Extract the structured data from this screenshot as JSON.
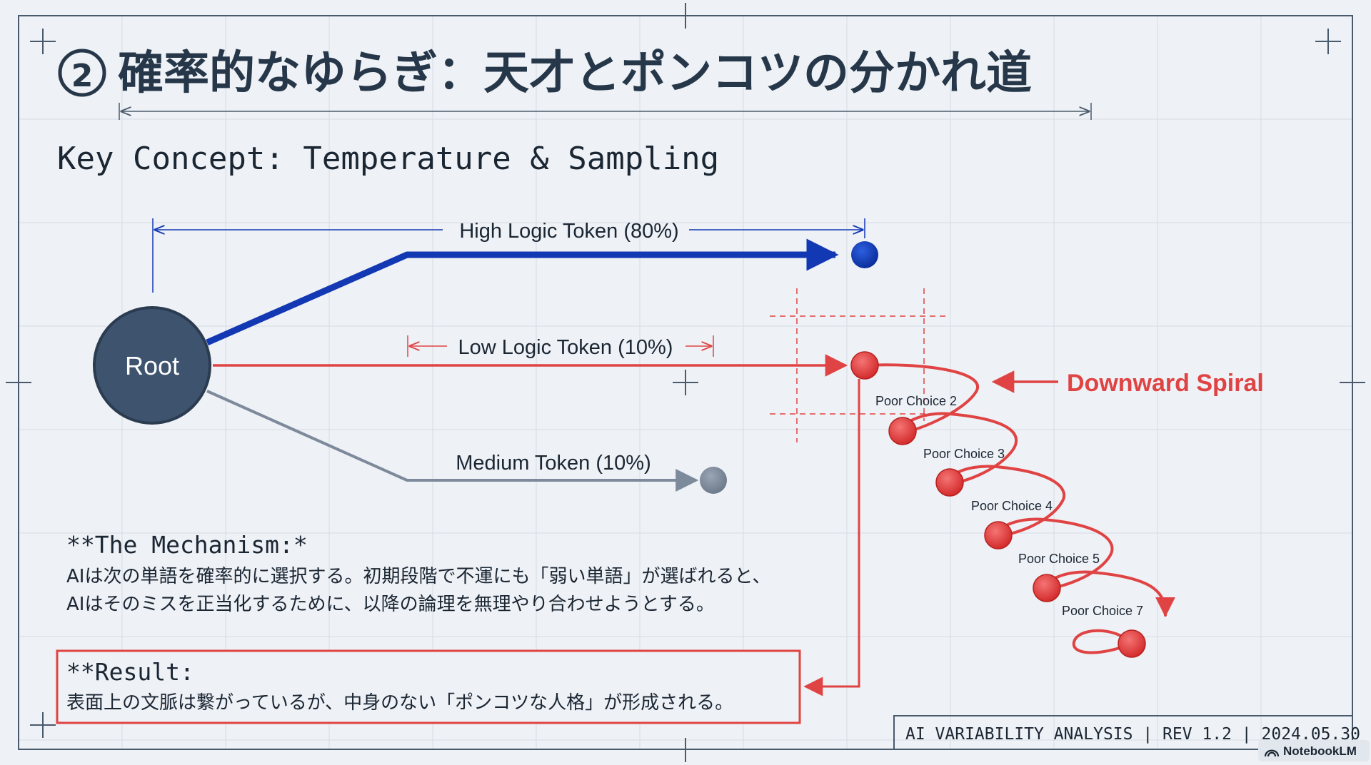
{
  "title": {
    "number": "②",
    "text": "確率的なゆらぎ：天才とポンコツの分かれ道"
  },
  "key_concept": "Key Concept: Temperature & Sampling",
  "diagram": {
    "root_label": "Root",
    "high_token_label": "High Logic Token (80%)",
    "low_token_label": "Low Logic Token (10%)",
    "medium_token_label": "Medium Token (10%)",
    "spiral_label": "Downward Spiral",
    "poor_choices": [
      "Poor Choice 2",
      "Poor Choice 3",
      "Poor Choice 4",
      "Poor Choice 5",
      "Poor Choice 7"
    ],
    "colors": {
      "high": "#1238b4",
      "low": "#e04343",
      "medium": "#7d8a9b",
      "root": "#3e536e"
    }
  },
  "mechanism": {
    "heading": "**The Mechanism:*",
    "line1": "AIは次の単語を確率的に選択する。初期段階で不運にも「弱い単語」が選ばれると、",
    "line2": "AIはそのミスを正当化するために、以降の論理を無理やり合わせようとする。"
  },
  "result": {
    "heading": "**Result:",
    "line1": "表面上の文脈は繋がっているが、中身のない「ポンコツな人格」が形成される。"
  },
  "footer": "AI VARIABILITY ANALYSIS | REV 1.2 | 2024.05.30",
  "brand": "NotebookLM"
}
